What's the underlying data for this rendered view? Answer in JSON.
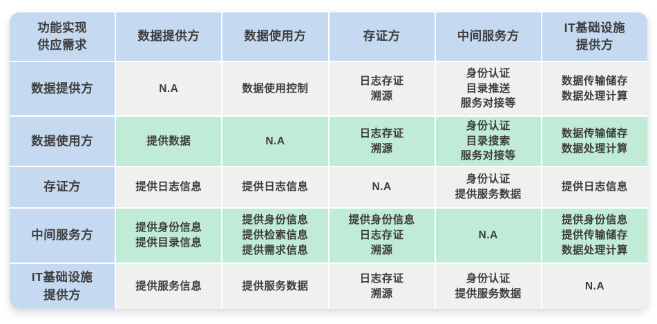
{
  "colors": {
    "header_blue": "#c5d9f1",
    "row_gray": "#f0f0ee",
    "row_green": "#c0ebd7",
    "text": "#3d3d3d",
    "background": "#ffffff"
  },
  "chart_data": {
    "type": "table",
    "title": "",
    "corner_header": "功能实现\n供应需求",
    "column_headers": [
      "数据提供方",
      "数据使用方",
      "存证方",
      "中间服务方",
      "IT基础设施\n提供方"
    ],
    "row_headers": [
      "数据提供方",
      "数据使用方",
      "存证方",
      "中间服务方",
      "IT基础设施\n提供方"
    ],
    "cells": [
      [
        "N.A",
        "数据使用控制",
        "日志存证\n溯源",
        "身份认证\n目录推送\n服务对接等",
        "数据传输储存\n数据处理计算"
      ],
      [
        "提供数据",
        "N.A",
        "日志存证\n溯源",
        "身份认证\n目录搜索\n服务对接等",
        "数据传输储存\n数据处理计算"
      ],
      [
        "提供日志信息",
        "提供日志信息",
        "N.A",
        "身份认证\n提供服务数据",
        "提供日志信息"
      ],
      [
        "提供身份信息\n提供目录信息",
        "提供身份信息\n提供检索信息\n提供需求信息",
        "提供身份信息\n日志存证\n溯源",
        "N.A",
        "提供身份信息\n提供传输储存\n数据处理计算"
      ],
      [
        "提供服务信息",
        "提供服务数据",
        "日志存证\n溯源",
        "身份认证\n提供服务数据",
        "N.A"
      ]
    ],
    "layout": {
      "row_striping": [
        "gray",
        "green",
        "gray",
        "green",
        "gray"
      ],
      "header_position": "top-and-left"
    }
  }
}
